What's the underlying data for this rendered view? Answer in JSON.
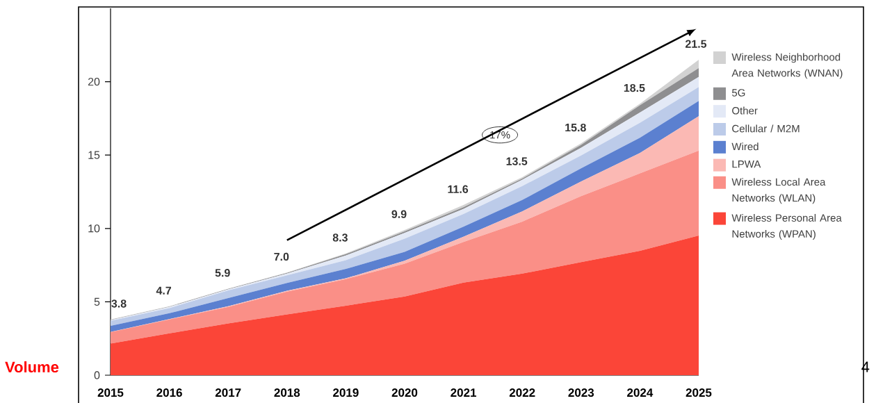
{
  "chart_data": {
    "type": "area",
    "stacked": true,
    "categories": [
      "2015",
      "2016",
      "2017",
      "2018",
      "2019",
      "2020",
      "2021",
      "2022",
      "2023",
      "2024",
      "2025"
    ],
    "series": [
      {
        "name": "Wireless Personal Area Networks (WPAN)",
        "color": "#fb4538",
        "values": [
          2.15,
          2.85,
          3.53,
          4.14,
          4.74,
          5.36,
          6.31,
          6.92,
          7.7,
          8.48,
          9.52
        ]
      },
      {
        "name": "Wireless Local Area Networks (WLAN)",
        "color": "#fa8f87",
        "values": [
          0.78,
          0.95,
          1.12,
          1.55,
          1.81,
          2.24,
          2.77,
          3.55,
          4.5,
          5.27,
          5.79
        ]
      },
      {
        "name": "LPWA",
        "color": "#fbb9b4",
        "values": [
          0.02,
          0.02,
          0.05,
          0.06,
          0.05,
          0.2,
          0.35,
          0.69,
          1.0,
          1.39,
          2.34
        ]
      },
      {
        "name": "Wired",
        "color": "#5b80d0",
        "values": [
          0.41,
          0.4,
          0.56,
          0.54,
          0.64,
          0.6,
          0.69,
          0.78,
          0.9,
          1.04,
          1.04
        ]
      },
      {
        "name": "Cellular / M2M",
        "color": "#bccbe9",
        "values": [
          0.34,
          0.35,
          0.52,
          0.52,
          0.6,
          0.9,
          0.87,
          0.95,
          0.87,
          1.02,
          0.95
        ]
      },
      {
        "name": "Other",
        "color": "#e3e9f6",
        "values": [
          0.05,
          0.08,
          0.07,
          0.11,
          0.31,
          0.4,
          0.34,
          0.43,
          0.53,
          0.7,
          0.69
        ]
      },
      {
        "name": "5G",
        "color": "#8e8e90",
        "values": [
          0.03,
          0.03,
          0.03,
          0.05,
          0.1,
          0.1,
          0.12,
          0.08,
          0.2,
          0.5,
          0.6
        ]
      },
      {
        "name": "Wireless Neighborhood Area Networks (WNAN)",
        "color": "#d2d2d2",
        "values": [
          0.02,
          0.02,
          0.02,
          0.03,
          0.05,
          0.1,
          0.15,
          0.1,
          0.1,
          0.1,
          0.57
        ]
      }
    ],
    "totals": [
      "3.8",
      "4.7",
      "5.9",
      "7.0",
      "8.3",
      "9.9",
      "11.6",
      "13.5",
      "15.8",
      "18.5",
      "21.5"
    ],
    "ylim": [
      0,
      25
    ],
    "yticks": [
      0,
      5,
      10,
      15,
      20
    ],
    "legend": "right",
    "annotations": [
      "17%",
      "Volume",
      "4"
    ]
  }
}
